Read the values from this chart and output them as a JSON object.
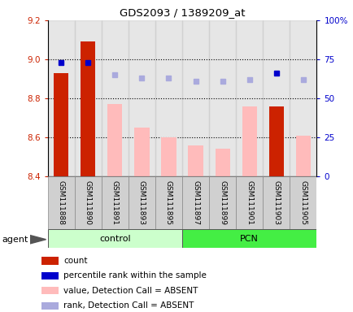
{
  "title": "GDS2093 / 1389209_at",
  "samples": [
    "GSM111888",
    "GSM111890",
    "GSM111891",
    "GSM111893",
    "GSM111895",
    "GSM111897",
    "GSM111899",
    "GSM111901",
    "GSM111903",
    "GSM111905"
  ],
  "bar_values": [
    8.93,
    9.09,
    null,
    null,
    null,
    null,
    null,
    null,
    8.76,
    null
  ],
  "bar_color_present": "#cc2200",
  "bar_color_absent": "#ffbbbb",
  "absent_values": [
    null,
    null,
    8.77,
    8.65,
    8.6,
    8.56,
    8.54,
    8.76,
    null,
    8.61
  ],
  "rank_present": [
    73,
    73,
    null,
    null,
    null,
    null,
    null,
    null,
    66,
    null
  ],
  "rank_absent": [
    null,
    null,
    65,
    63,
    63,
    61,
    61,
    62,
    null,
    62
  ],
  "ylim_left": [
    8.4,
    9.2
  ],
  "ylim_right": [
    0,
    100
  ],
  "yticks_left": [
    8.4,
    8.6,
    8.8,
    9.0,
    9.2
  ],
  "yticks_right": [
    0,
    25,
    50,
    75,
    100
  ],
  "ytick_labels_right": [
    "0",
    "25",
    "50",
    "75",
    "100%"
  ],
  "legend_labels": [
    "count",
    "percentile rank within the sample",
    "value, Detection Call = ABSENT",
    "rank, Detection Call = ABSENT"
  ],
  "legend_colors": [
    "#cc2200",
    "#0000cc",
    "#ffbbbb",
    "#aaaadd"
  ],
  "control_color": "#ccffcc",
  "pcn_color": "#44ee44",
  "bar_base": 8.4
}
